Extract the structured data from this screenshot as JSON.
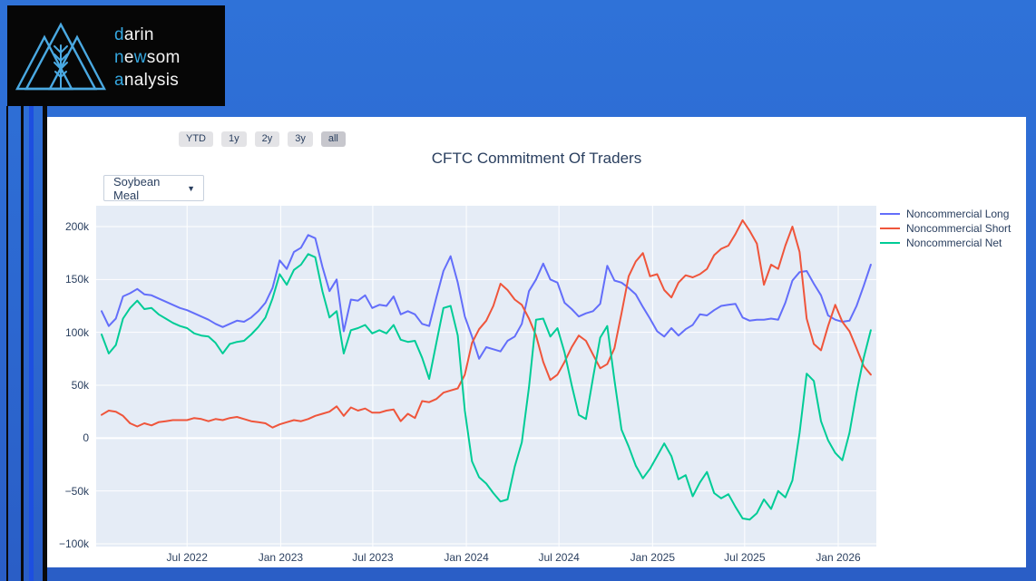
{
  "brand": {
    "l1a": "d",
    "l1b": "arin",
    "l2a": "n",
    "l2b": "e",
    "l2c": "w",
    "l2d": "som",
    "l3a": "a",
    "l3b": "nalysis",
    "highlight_color": "#35a7e0",
    "logo_stroke_color": "#4aa9e2"
  },
  "range_selector": {
    "buttons": [
      "YTD",
      "1y",
      "2y",
      "3y",
      "all"
    ],
    "active": "all"
  },
  "dropdown": {
    "value": "Soybean Meal",
    "caret": "▼"
  },
  "chart_data": {
    "type": "line",
    "title": "CFTC Commitment Of Traders",
    "x_start": "2022-01-14",
    "x_step_days": 14,
    "values_unit": "thousands of contracts",
    "ylim": [
      -101.7,
      220
    ],
    "plot_bg": "#e5ecf6",
    "grid_color": "#ffffff",
    "legend_position": "right-top",
    "y_ticks": [
      {
        "value": 200,
        "label": "200k"
      },
      {
        "value": 150,
        "label": "150k"
      },
      {
        "value": 100,
        "label": "100k"
      },
      {
        "value": 50,
        "label": "50k"
      },
      {
        "value": 0,
        "label": "0"
      },
      {
        "value": -50,
        "label": "−50k"
      },
      {
        "value": -100,
        "label": "−100k"
      }
    ],
    "x_ticks": [
      {
        "date": "2022-07-01",
        "label": "Jul 2022"
      },
      {
        "date": "2023-01-01",
        "label": "Jan 2023"
      },
      {
        "date": "2023-07-01",
        "label": "Jul 2023"
      },
      {
        "date": "2024-01-01",
        "label": "Jan 2024"
      },
      {
        "date": "2024-07-01",
        "label": "Jul 2024"
      },
      {
        "date": "2025-01-01",
        "label": "Jan 2025"
      },
      {
        "date": "2025-07-01",
        "label": "Jul 2025"
      },
      {
        "date": "2026-01-01",
        "label": "Jan 2026"
      }
    ],
    "series": [
      {
        "name": "Noncommercial Long",
        "color": "#636efa",
        "values": [
          120,
          106,
          113,
          134,
          137,
          141,
          136,
          135,
          132,
          129,
          126,
          123,
          121,
          118,
          115,
          112,
          108,
          105,
          108,
          111,
          110,
          114,
          120,
          128,
          142,
          168,
          160,
          176,
          180,
          192,
          189,
          162,
          139,
          150,
          101,
          131,
          130,
          135,
          123,
          126,
          125,
          134,
          117,
          120,
          117,
          108,
          106,
          133,
          158,
          172,
          147,
          115,
          96,
          75,
          86,
          84,
          82,
          92,
          96,
          108,
          139,
          150,
          165,
          150,
          147,
          128,
          122,
          115,
          118,
          120,
          127,
          163,
          149,
          147,
          142,
          136,
          124,
          113,
          101,
          96,
          104,
          97,
          103,
          107,
          117,
          116,
          121,
          125,
          126,
          127,
          114,
          111,
          112,
          112,
          113,
          112,
          128,
          149,
          157,
          158,
          146,
          135,
          116,
          112,
          110,
          111,
          125,
          144,
          164
        ]
      },
      {
        "name": "Noncommercial Short",
        "color": "#EF553B",
        "values": [
          22,
          26,
          25,
          21,
          14,
          11,
          14,
          12,
          15,
          16,
          17,
          17,
          17,
          19,
          18,
          16,
          18,
          17,
          19,
          20,
          18,
          16,
          15,
          14,
          10,
          13,
          15,
          17,
          16,
          18,
          21,
          23,
          25,
          30,
          21,
          29,
          26,
          28,
          24,
          24,
          26,
          27,
          16,
          23,
          19,
          35,
          34,
          37,
          43,
          45,
          47,
          60,
          90,
          103,
          111,
          125,
          146,
          140,
          131,
          126,
          113,
          97,
          72,
          55,
          60,
          72,
          86,
          97,
          92,
          79,
          66,
          70,
          85,
          118,
          153,
          167,
          175,
          153,
          155,
          140,
          133,
          147,
          154,
          152,
          155,
          160,
          173,
          179,
          182,
          193,
          206,
          196,
          184,
          145,
          164,
          160,
          182,
          200,
          176,
          113,
          89,
          83,
          106,
          126,
          110,
          101,
          85,
          68,
          60
        ]
      },
      {
        "name": "Noncommercial Net",
        "color": "#00CC96",
        "values": [
          98,
          80,
          88,
          113,
          123,
          130,
          122,
          123,
          117,
          113,
          109,
          106,
          104,
          99,
          97,
          96,
          90,
          80,
          89,
          91,
          92,
          98,
          105,
          114,
          132,
          155,
          145,
          159,
          164,
          174,
          171,
          139,
          114,
          120,
          80,
          102,
          104,
          107,
          99,
          102,
          99,
          107,
          93,
          91,
          92,
          76,
          56,
          90,
          123,
          125,
          97,
          26,
          -22,
          -37,
          -43,
          -52,
          -60,
          -58,
          -27,
          -4,
          48,
          112,
          113,
          96,
          104,
          81,
          50,
          22,
          18,
          57,
          95,
          106,
          55,
          8,
          -8,
          -26,
          -38,
          -29,
          -17,
          -5,
          -17,
          -39,
          -35,
          -55,
          -42,
          -32,
          -52,
          -57,
          -53,
          -65,
          -76,
          -77,
          -71,
          -58,
          -67,
          -50,
          -56,
          -40,
          5,
          61,
          54,
          16,
          -2,
          -14,
          -21,
          5,
          43,
          76,
          102
        ]
      }
    ]
  },
  "colors": {
    "page_background": "#2c67d0",
    "header_background": "#060606",
    "card_background": "#ffffff",
    "text_navy": "#2a3f5f",
    "stripe_black": "#0a0a0a",
    "stripe_blue": "#1d4fe0"
  }
}
